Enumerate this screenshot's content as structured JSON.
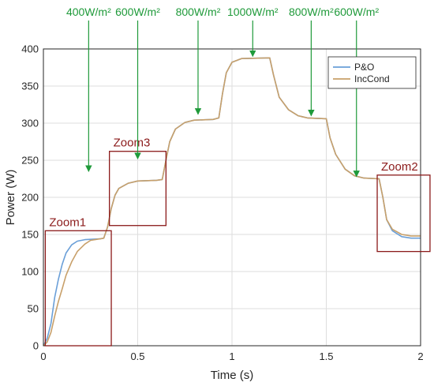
{
  "chart_data": {
    "type": "line",
    "xlabel": "Time (s)",
    "ylabel": "Power (W)",
    "xlim": [
      0,
      2
    ],
    "ylim": [
      0,
      400
    ],
    "x_ticks": [
      "0",
      "0.5",
      "1",
      "1.5",
      "2"
    ],
    "y_ticks": [
      "0",
      "50",
      "100",
      "150",
      "200",
      "250",
      "300",
      "350",
      "400"
    ],
    "grid": true,
    "legend": "top-right",
    "series": [
      {
        "name": "P&O",
        "color": "#6a9fd8",
        "points": [
          [
            0,
            0
          ],
          [
            0.02,
            10
          ],
          [
            0.04,
            30
          ],
          [
            0.06,
            65
          ],
          [
            0.08,
            90
          ],
          [
            0.1,
            110
          ],
          [
            0.12,
            125
          ],
          [
            0.15,
            136
          ],
          [
            0.18,
            141
          ],
          [
            0.22,
            143
          ],
          [
            0.3,
            144
          ],
          [
            0.32,
            145
          ],
          [
            0.34,
            160
          ],
          [
            0.36,
            185
          ],
          [
            0.38,
            203
          ],
          [
            0.4,
            212
          ],
          [
            0.45,
            219
          ],
          [
            0.5,
            222
          ],
          [
            0.6,
            223
          ],
          [
            0.63,
            224
          ],
          [
            0.65,
            250
          ],
          [
            0.67,
            275
          ],
          [
            0.7,
            292
          ],
          [
            0.75,
            301
          ],
          [
            0.8,
            304
          ],
          [
            0.9,
            305
          ],
          [
            0.93,
            307
          ],
          [
            0.95,
            340
          ],
          [
            0.97,
            368
          ],
          [
            1.0,
            382
          ],
          [
            1.05,
            387
          ],
          [
            1.2,
            388
          ],
          [
            1.22,
            365
          ],
          [
            1.25,
            335
          ],
          [
            1.3,
            318
          ],
          [
            1.35,
            310
          ],
          [
            1.4,
            307
          ],
          [
            1.5,
            306
          ],
          [
            1.52,
            280
          ],
          [
            1.55,
            258
          ],
          [
            1.6,
            238
          ],
          [
            1.65,
            229
          ],
          [
            1.7,
            226
          ],
          [
            1.78,
            225
          ],
          [
            1.8,
            200
          ],
          [
            1.82,
            170
          ],
          [
            1.85,
            155
          ],
          [
            1.9,
            147
          ],
          [
            1.95,
            145
          ],
          [
            2.0,
            145
          ]
        ]
      },
      {
        "name": "IncCond",
        "color": "#c8a06a",
        "points": [
          [
            0,
            0
          ],
          [
            0.02,
            5
          ],
          [
            0.04,
            18
          ],
          [
            0.06,
            40
          ],
          [
            0.08,
            60
          ],
          [
            0.1,
            77
          ],
          [
            0.12,
            95
          ],
          [
            0.15,
            113
          ],
          [
            0.18,
            127
          ],
          [
            0.22,
            137
          ],
          [
            0.25,
            142
          ],
          [
            0.3,
            144
          ],
          [
            0.32,
            145
          ],
          [
            0.34,
            160
          ],
          [
            0.36,
            185
          ],
          [
            0.38,
            203
          ],
          [
            0.4,
            212
          ],
          [
            0.45,
            219
          ],
          [
            0.5,
            222
          ],
          [
            0.6,
            223
          ],
          [
            0.63,
            224
          ],
          [
            0.65,
            250
          ],
          [
            0.67,
            275
          ],
          [
            0.7,
            292
          ],
          [
            0.75,
            301
          ],
          [
            0.8,
            304
          ],
          [
            0.9,
            305
          ],
          [
            0.93,
            307
          ],
          [
            0.95,
            340
          ],
          [
            0.97,
            368
          ],
          [
            1.0,
            382
          ],
          [
            1.05,
            387
          ],
          [
            1.2,
            388
          ],
          [
            1.22,
            365
          ],
          [
            1.25,
            335
          ],
          [
            1.3,
            318
          ],
          [
            1.35,
            310
          ],
          [
            1.4,
            307
          ],
          [
            1.5,
            306
          ],
          [
            1.52,
            280
          ],
          [
            1.55,
            258
          ],
          [
            1.6,
            238
          ],
          [
            1.65,
            229
          ],
          [
            1.7,
            226
          ],
          [
            1.78,
            225
          ],
          [
            1.8,
            200
          ],
          [
            1.82,
            170
          ],
          [
            1.85,
            157
          ],
          [
            1.9,
            150
          ],
          [
            1.95,
            148
          ],
          [
            2.0,
            148
          ]
        ]
      }
    ],
    "irradiance_annotations": [
      {
        "text": "400W/m²",
        "x": 0.24,
        "y": 235
      },
      {
        "text": "600W/m²",
        "x": 0.5,
        "y": 252
      },
      {
        "text": "800W/m²",
        "x": 0.82,
        "y": 312
      },
      {
        "text": "1000W/m²",
        "x": 1.11,
        "y": 390
      },
      {
        "text": "800W/m²",
        "x": 1.42,
        "y": 310
      },
      {
        "text": "600W/m²",
        "x": 1.66,
        "y": 228
      }
    ],
    "zoom_boxes": [
      {
        "label": "Zoom1",
        "x0": 0.01,
        "x1": 0.36,
        "y0": 0,
        "y1": 155
      },
      {
        "label": "Zoom3",
        "x0": 0.35,
        "x1": 0.65,
        "y0": 162,
        "y1": 262
      },
      {
        "label": "Zoom2",
        "x0": 1.77,
        "x1": 2.05,
        "y0": 127,
        "y1": 230
      }
    ]
  }
}
